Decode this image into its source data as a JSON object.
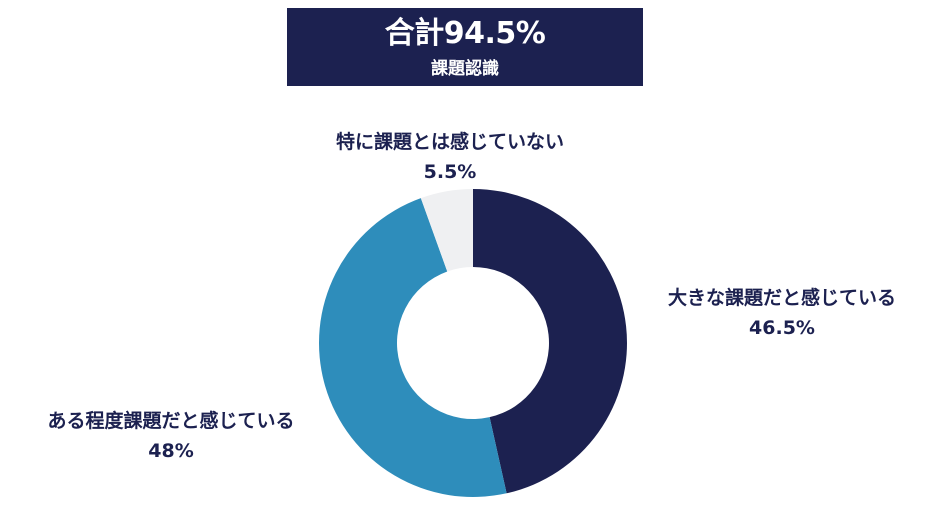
{
  "summary": {
    "total": "合計94.5%",
    "subtitle": "課題認識"
  },
  "chart_data": {
    "type": "pie",
    "donut": true,
    "start": "12 o'clock",
    "direction": "clockwise",
    "slices": [
      {
        "label": "大きな課題だと感じている",
        "value": 46.5,
        "value_label": "46.5%",
        "color": "#1c2150"
      },
      {
        "label": "ある程度課題だと感じている",
        "value": 48,
        "value_label": "48%",
        "color": "#2e8dbb"
      },
      {
        "label": "特に課題とは感じていない",
        "value": 5.5,
        "value_label": "5.5%",
        "color": "#eff0f2"
      }
    ]
  }
}
